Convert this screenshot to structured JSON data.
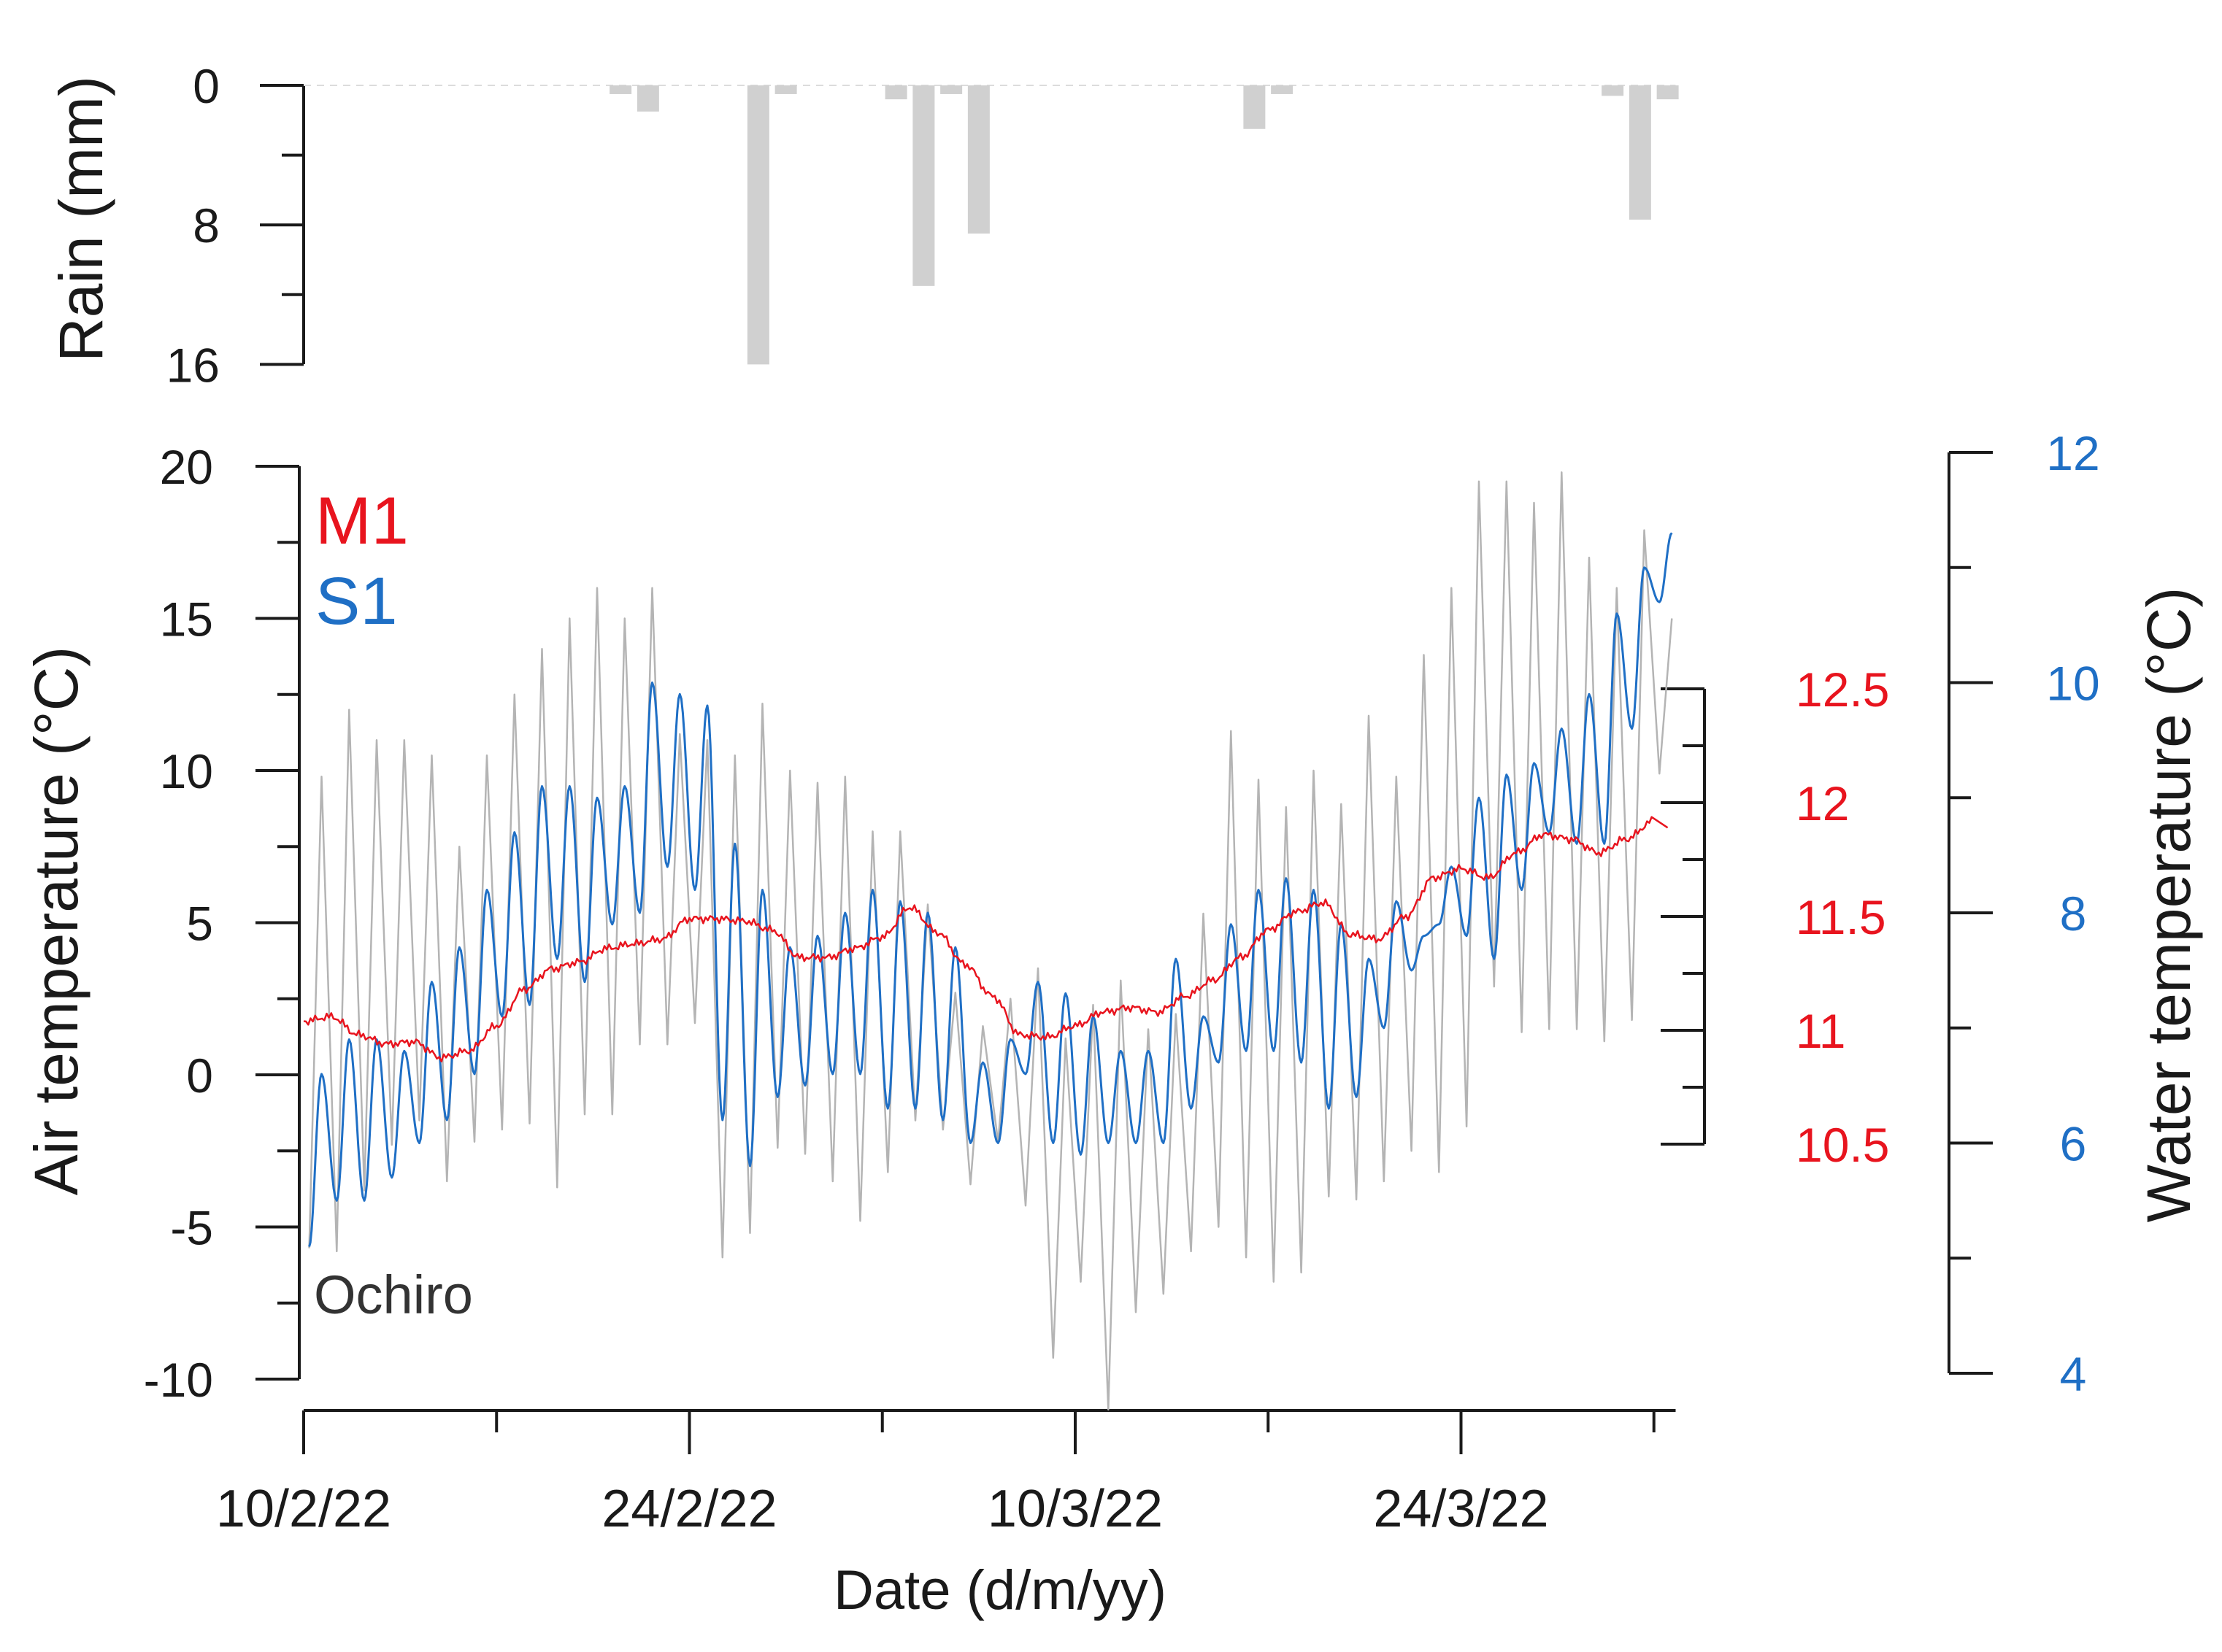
{
  "chart_data": [
    {
      "type": "bar",
      "panel": "rain",
      "ylabel": "Rain (mm)",
      "y_inverted": true,
      "ylim": [
        0,
        16
      ],
      "yticks": [
        0,
        8,
        16
      ],
      "ytick_labels": [
        "0",
        "8",
        "16"
      ],
      "x_start": "2022-02-10",
      "x_end": "2022-03-31",
      "bar_color": "#d0d0d0",
      "series": [
        {
          "x": [
            "2022-02-21",
            "2022-02-22",
            "2022-02-26",
            "2022-02-27",
            "2022-03-03",
            "2022-03-04",
            "2022-03-05",
            "2022-03-06",
            "2022-03-16",
            "2022-03-17",
            "2022-03-29",
            "2022-03-30",
            "2022-03-31"
          ],
          "values": [
            0.5,
            1.5,
            16,
            0.5,
            0.8,
            11.5,
            0.5,
            8.5,
            2.5,
            0.5,
            0.6,
            7.7,
            0.8
          ]
        }
      ]
    },
    {
      "type": "line",
      "panel": "temperature",
      "xlabel": "Date (d/m/yy)",
      "x_ticks_labeled": [
        "2022-02-10",
        "2022-02-24",
        "2022-03-10",
        "2022-03-24"
      ],
      "x_tick_labels": [
        "10/2/22",
        "24/2/22",
        "10/3/22",
        "24/3/22"
      ],
      "x_minor_ticks": [
        "2022-02-17",
        "2022-03-03",
        "2022-03-17",
        "2022-03-31"
      ],
      "x_start": "2022-02-10",
      "x_end": "2022-04-01",
      "axes": {
        "air": {
          "label": "Air temperature (°C)",
          "ylim": [
            -10,
            20
          ],
          "ticks": [
            -10,
            -5,
            0,
            5,
            10,
            15,
            20
          ],
          "tick_labels": [
            "-10",
            "-5",
            "0",
            "5",
            "10",
            "15",
            "20"
          ],
          "side": "left"
        },
        "m1": {
          "ylim": [
            10.5,
            12.5
          ],
          "ticks": [
            10.5,
            11,
            11.5,
            12,
            12.5
          ],
          "tick_labels": [
            "10.5",
            "11",
            "11.5",
            "12",
            "12.5"
          ],
          "color": "#e8141e",
          "side": "right"
        },
        "water": {
          "label": "Water temperature (°C)",
          "ylim": [
            4,
            12
          ],
          "ticks": [
            4,
            6,
            8,
            10,
            12
          ],
          "tick_labels": [
            "4",
            "6",
            "8",
            "10",
            "12"
          ],
          "color": "#1f6fc5",
          "side": "right"
        }
      },
      "series": [
        {
          "name": "Ochiro",
          "axis": "air",
          "color": "#b4b4b4",
          "x": [
            "2022-02-10",
            "2022-02-11",
            "2022-02-12",
            "2022-02-13",
            "2022-02-14",
            "2022-02-15",
            "2022-02-16",
            "2022-02-17",
            "2022-02-18",
            "2022-02-19",
            "2022-02-20",
            "2022-02-21",
            "2022-02-22",
            "2022-02-23",
            "2022-02-24",
            "2022-02-25",
            "2022-02-26",
            "2022-02-27",
            "2022-02-28",
            "2022-03-01",
            "2022-03-02",
            "2022-03-03",
            "2022-03-04",
            "2022-03-05",
            "2022-03-06",
            "2022-03-07",
            "2022-03-08",
            "2022-03-09",
            "2022-03-10",
            "2022-03-11",
            "2022-03-12",
            "2022-03-13",
            "2022-03-14",
            "2022-03-15",
            "2022-03-16",
            "2022-03-17",
            "2022-03-18",
            "2022-03-19",
            "2022-03-20",
            "2022-03-21",
            "2022-03-22",
            "2022-03-23",
            "2022-03-24",
            "2022-03-25",
            "2022-03-26",
            "2022-03-27",
            "2022-03-28",
            "2022-03-29",
            "2022-03-30",
            "2022-03-31"
          ],
          "daily_max": [
            9.8,
            12,
            11,
            11,
            10.5,
            7.5,
            10.5,
            12.5,
            14,
            15,
            16,
            15,
            16,
            11.2,
            11,
            10.5,
            12.2,
            10,
            9.6,
            9.8,
            8,
            8,
            5.6,
            2.7,
            1.6,
            2.5,
            3.5,
            1.2,
            2.3,
            3.1,
            1.5,
            2,
            5.3,
            11.3,
            9.7,
            8.8,
            10,
            8.9,
            11.8,
            9.8,
            13.8,
            16,
            19.5,
            19.5,
            18.8,
            19.8,
            17,
            16,
            17.9,
            15
          ],
          "daily_min": [
            -5.7,
            -5.8,
            -3.8,
            -2.3,
            -1.5,
            -3.5,
            -2.2,
            -1.8,
            -1.6,
            -3.7,
            -1.3,
            -1.3,
            1,
            1,
            1.7,
            -6,
            -5.2,
            -2.4,
            -2.6,
            -3.5,
            -4.8,
            -3.2,
            -1.5,
            -1.8,
            -3.6,
            -2.2,
            -4.3,
            -9.3,
            -6.8,
            -11,
            -7.8,
            -7.2,
            -5.8,
            -5,
            -6,
            -6.8,
            -6.5,
            -4,
            -4.1,
            -3.5,
            -2.5,
            -3.2,
            -1.7,
            2.9,
            1.4,
            1.5,
            1.5,
            1.1,
            1.8,
            9.9
          ]
        },
        {
          "name": "S1",
          "axis": "water",
          "color": "#1f6fc5",
          "x": [
            "2022-02-10",
            "2022-02-11",
            "2022-02-12",
            "2022-02-13",
            "2022-02-14",
            "2022-02-15",
            "2022-02-16",
            "2022-02-17",
            "2022-02-18",
            "2022-02-19",
            "2022-02-20",
            "2022-02-21",
            "2022-02-22",
            "2022-02-23",
            "2022-02-24",
            "2022-02-25",
            "2022-02-26",
            "2022-02-27",
            "2022-02-28",
            "2022-03-01",
            "2022-03-02",
            "2022-03-03",
            "2022-03-04",
            "2022-03-05",
            "2022-03-06",
            "2022-03-07",
            "2022-03-08",
            "2022-03-09",
            "2022-03-10",
            "2022-03-11",
            "2022-03-12",
            "2022-03-13",
            "2022-03-14",
            "2022-03-15",
            "2022-03-16",
            "2022-03-17",
            "2022-03-18",
            "2022-03-19",
            "2022-03-20",
            "2022-03-21",
            "2022-03-22",
            "2022-03-23",
            "2022-03-24",
            "2022-03-25",
            "2022-03-26",
            "2022-03-27",
            "2022-03-28",
            "2022-03-29",
            "2022-03-30",
            "2022-03-31"
          ],
          "daily_max": [
            6.6,
            6.9,
            6.9,
            6.8,
            7.4,
            7.7,
            8.2,
            8.7,
            9.1,
            9.1,
            9.0,
            9.1,
            10.0,
            9.9,
            9.8,
            8.6,
            8.2,
            7.7,
            7.8,
            8.0,
            8.2,
            8.1,
            8.0,
            7.7,
            6.7,
            6.9,
            7.4,
            7.3,
            7.1,
            6.8,
            6.8,
            7.6,
            7.1,
            7.9,
            8.2,
            8.3,
            8.2,
            7.9,
            7.6,
            8.1,
            7.8,
            8.4,
            9.0,
            9.2,
            9.3,
            9.6,
            9.9,
            10.6,
            11.0,
            11.3
          ],
          "daily_min": [
            5.1,
            5.5,
            5.5,
            5.7,
            6.0,
            6.2,
            6.6,
            7.1,
            7.2,
            7.6,
            7.4,
            7.9,
            8.0,
            8.4,
            8.2,
            6.2,
            5.8,
            6.4,
            6.5,
            6.6,
            6.6,
            6.3,
            6.3,
            6.2,
            6.0,
            6.0,
            6.6,
            6.0,
            5.9,
            6.0,
            6.0,
            6.0,
            6.3,
            6.7,
            6.8,
            6.8,
            6.7,
            6.3,
            6.4,
            7.0,
            7.5,
            7.9,
            7.8,
            7.6,
            8.2,
            8.7,
            8.6,
            8.6,
            9.6,
            10.7
          ]
        },
        {
          "name": "M1",
          "axis": "m1",
          "color": "#e8141e",
          "x": [
            "2022-02-10",
            "2022-02-11",
            "2022-02-12",
            "2022-02-13",
            "2022-02-14",
            "2022-02-15",
            "2022-02-16",
            "2022-02-17",
            "2022-02-18",
            "2022-02-19",
            "2022-02-20",
            "2022-02-21",
            "2022-02-22",
            "2022-02-23",
            "2022-02-24",
            "2022-02-25",
            "2022-02-26",
            "2022-02-27",
            "2022-02-28",
            "2022-03-01",
            "2022-03-02",
            "2022-03-03",
            "2022-03-04",
            "2022-03-05",
            "2022-03-06",
            "2022-03-07",
            "2022-03-08",
            "2022-03-09",
            "2022-03-10",
            "2022-03-11",
            "2022-03-12",
            "2022-03-13",
            "2022-03-14",
            "2022-03-15",
            "2022-03-16",
            "2022-03-17",
            "2022-03-18",
            "2022-03-19",
            "2022-03-20",
            "2022-03-21",
            "2022-03-22",
            "2022-03-23",
            "2022-03-24",
            "2022-03-25",
            "2022-03-26",
            "2022-03-27",
            "2022-03-28",
            "2022-03-29",
            "2022-03-30",
            "2022-03-31"
          ],
          "values": [
            11.04,
            11.06,
            10.98,
            10.94,
            10.95,
            10.88,
            10.91,
            11.02,
            11.18,
            11.27,
            11.3,
            11.36,
            11.38,
            11.4,
            11.49,
            11.49,
            11.48,
            11.44,
            11.32,
            11.32,
            11.36,
            11.41,
            11.54,
            11.43,
            11.29,
            11.15,
            10.98,
            10.97,
            11.02,
            11.08,
            11.1,
            11.08,
            11.15,
            11.22,
            11.32,
            11.44,
            11.52,
            11.56,
            11.42,
            11.4,
            11.5,
            11.67,
            11.71,
            11.67,
            11.78,
            11.86,
            11.84,
            11.78,
            11.84,
            11.92
          ]
        }
      ]
    }
  ]
}
